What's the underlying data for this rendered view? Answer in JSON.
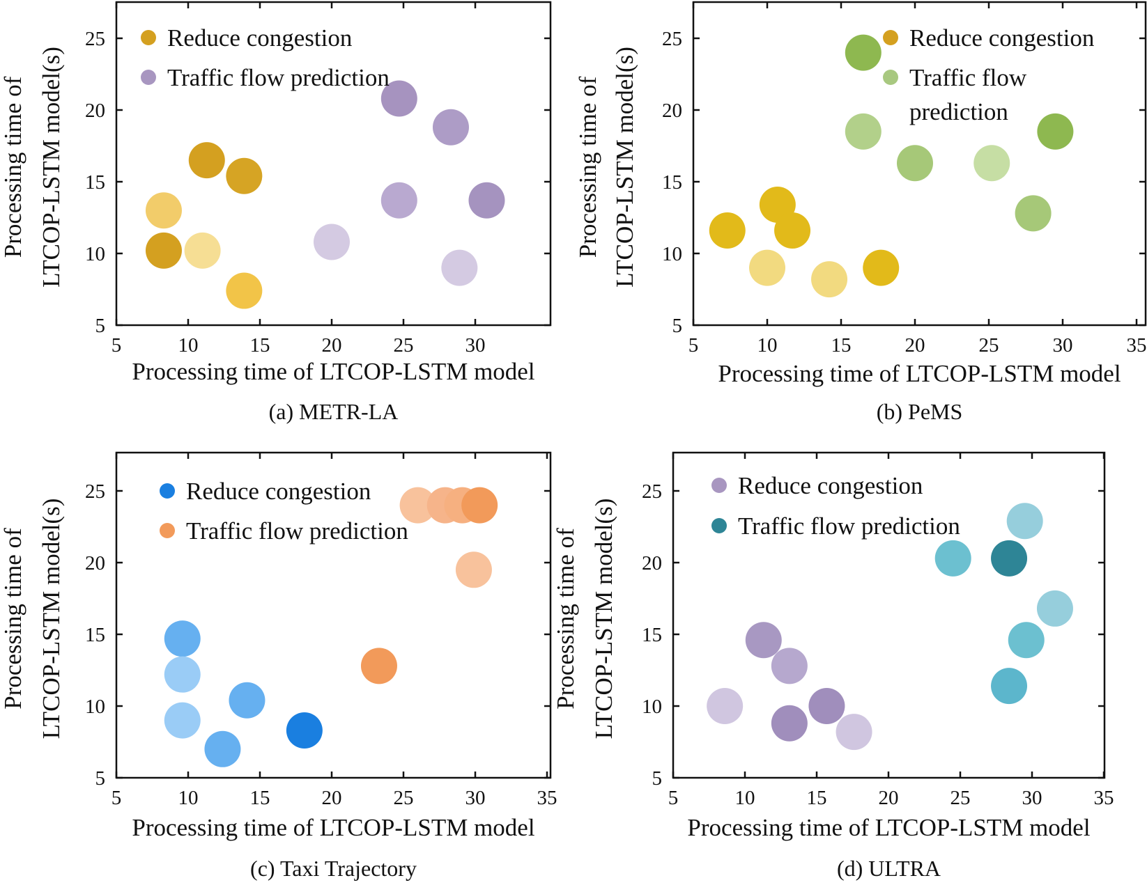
{
  "chart_data": [
    {
      "id": "a",
      "type": "scatter",
      "caption": "(a) METR-LA",
      "xlabel": "Processing time of LTCOP-LSTM model",
      "ylabel_lines": [
        "Processing time of",
        "LTCOP-LSTM model(s)"
      ],
      "xlim": [
        5,
        35
      ],
      "ylim": [
        5,
        27.5
      ],
      "xticks": [
        5,
        10,
        15,
        20,
        25,
        30
      ],
      "yticks": [
        5,
        10,
        15,
        20,
        25
      ],
      "legend_position": "top-left",
      "series": [
        {
          "name": "Reduce congestion",
          "color": "#D4A020",
          "points": [
            {
              "x": 11.3,
              "y": 16.5,
              "color": "#D4A020"
            },
            {
              "x": 13.9,
              "y": 15.4,
              "color": "#D6A424"
            },
            {
              "x": 8.3,
              "y": 13.0,
              "color": "#F2CC6A"
            },
            {
              "x": 8.3,
              "y": 10.2,
              "color": "#D4A020"
            },
            {
              "x": 11.0,
              "y": 10.2,
              "color": "#F6DE94"
            },
            {
              "x": 13.9,
              "y": 7.4,
              "color": "#F2C448"
            }
          ]
        },
        {
          "name": "Traffic flow prediction",
          "color": "#A896C0",
          "points": [
            {
              "x": 24.7,
              "y": 20.8,
              "color": "#A693BF"
            },
            {
              "x": 28.3,
              "y": 18.8,
              "color": "#AD9CC6"
            },
            {
              "x": 24.7,
              "y": 13.7,
              "color": "#B9A9D0"
            },
            {
              "x": 30.8,
              "y": 13.7,
              "color": "#A593BF"
            },
            {
              "x": 20.0,
              "y": 10.8,
              "color": "#D4CAE2"
            },
            {
              "x": 28.9,
              "y": 9.0,
              "color": "#D4CAE2"
            }
          ]
        }
      ]
    },
    {
      "id": "b",
      "type": "scatter",
      "caption": "(b) PeMS",
      "xlabel": "Processing time of LTCOP-LSTM model",
      "ylabel_lines": [
        "Processing time of",
        "LTCOP-LSTM model(s)"
      ],
      "xlim": [
        5,
        35
      ],
      "ylim": [
        5,
        27.5
      ],
      "xticks": [
        5,
        10,
        15,
        20,
        25,
        30,
        35
      ],
      "yticks": [
        5,
        10,
        15,
        20,
        25
      ],
      "legend_position": "top-right",
      "series": [
        {
          "name": "Reduce congestion",
          "color": "#D4A020",
          "points": [
            {
              "x": 7.3,
              "y": 11.6,
              "color": "#E2BA1A"
            },
            {
              "x": 10.7,
              "y": 13.4,
              "color": "#E2BA1A"
            },
            {
              "x": 11.7,
              "y": 11.6,
              "color": "#E2BA1A"
            },
            {
              "x": 17.7,
              "y": 9.0,
              "color": "#E2BA1A"
            },
            {
              "x": 10.0,
              "y": 9.0,
              "color": "#F2DA80"
            },
            {
              "x": 14.2,
              "y": 8.2,
              "color": "#F2DA80"
            }
          ]
        },
        {
          "name": "Traffic flow\nprediction",
          "color": "#A8C880",
          "points": [
            {
              "x": 16.5,
              "y": 24.0,
              "color": "#8EB850"
            },
            {
              "x": 16.5,
              "y": 18.5,
              "color": "#B2D08A"
            },
            {
              "x": 20.0,
              "y": 16.3,
              "color": "#A6C878"
            },
            {
              "x": 25.2,
              "y": 16.3,
              "color": "#C6DEA4"
            },
            {
              "x": 29.5,
              "y": 18.5,
              "color": "#8EB850"
            },
            {
              "x": 28.0,
              "y": 12.8,
              "color": "#A6C878"
            }
          ]
        }
      ]
    },
    {
      "id": "c",
      "type": "scatter",
      "caption": "(c) Taxi Trajectory",
      "xlabel": "Processing time of LTCOP-LSTM model",
      "ylabel_lines": [
        "Processing time of",
        "LTCOP-LSTM model(s)"
      ],
      "xlim": [
        5,
        35
      ],
      "ylim": [
        5,
        27.5
      ],
      "xticks": [
        5,
        10,
        15,
        20,
        25,
        30,
        35
      ],
      "yticks": [
        5,
        10,
        15,
        20,
        25
      ],
      "legend_position": "top-left",
      "series": [
        {
          "name": "Reduce congestion",
          "color": "#1A7FE0",
          "points": [
            {
              "x": 9.6,
              "y": 14.7,
              "color": "#66B0F0"
            },
            {
              "x": 9.6,
              "y": 12.2,
              "color": "#9ACCF6"
            },
            {
              "x": 9.6,
              "y": 9.0,
              "color": "#9ACCF6"
            },
            {
              "x": 12.4,
              "y": 7.0,
              "color": "#66B0F0"
            },
            {
              "x": 14.1,
              "y": 10.4,
              "color": "#66B0F0"
            },
            {
              "x": 18.1,
              "y": 8.3,
              "color": "#1A7FE0"
            }
          ]
        },
        {
          "name": "Traffic flow prediction",
          "color": "#F29A5A",
          "points": [
            {
              "x": 26.0,
              "y": 24.0,
              "color": "#F8C29C"
            },
            {
              "x": 27.9,
              "y": 24.0,
              "color": "#F6B48A"
            },
            {
              "x": 29.1,
              "y": 24.0,
              "color": "#F6B080"
            },
            {
              "x": 30.3,
              "y": 24.0,
              "color": "#F29A5A"
            },
            {
              "x": 29.9,
              "y": 19.5,
              "color": "#F8C29C"
            },
            {
              "x": 23.3,
              "y": 12.8,
              "color": "#F29A5A"
            }
          ]
        }
      ]
    },
    {
      "id": "d",
      "type": "scatter",
      "caption": "(d) ULTRA",
      "xlabel": "Processing time of LTCOP-LSTM model",
      "ylabel_lines": [
        "Processing time of",
        "LTCOP-LSTM model(s)"
      ],
      "xlim": [
        5,
        35
      ],
      "ylim": [
        5,
        27.5
      ],
      "xticks": [
        5,
        10,
        15,
        20,
        25,
        30,
        35
      ],
      "yticks": [
        5,
        10,
        15,
        20,
        25
      ],
      "legend_position": "top-left",
      "series": [
        {
          "name": "Reduce congestion",
          "color": "#A896C0",
          "points": [
            {
              "x": 11.3,
              "y": 14.6,
              "color": "#A898C2"
            },
            {
              "x": 13.1,
              "y": 12.8,
              "color": "#B6A8CE"
            },
            {
              "x": 15.7,
              "y": 10.0,
              "color": "#A08EBC"
            },
            {
              "x": 13.1,
              "y": 8.8,
              "color": "#A08EBC"
            },
            {
              "x": 8.6,
              "y": 10.0,
              "color": "#D0C6E0"
            },
            {
              "x": 17.6,
              "y": 8.2,
              "color": "#D0C6E0"
            }
          ]
        },
        {
          "name": "Traffic flow prediction",
          "color": "#2E8596",
          "points": [
            {
              "x": 24.5,
              "y": 20.3,
              "color": "#6CC0D0"
            },
            {
              "x": 28.4,
              "y": 20.3,
              "color": "#2E8596"
            },
            {
              "x": 29.5,
              "y": 22.9,
              "color": "#96CEDC"
            },
            {
              "x": 31.6,
              "y": 16.8,
              "color": "#96CEDC"
            },
            {
              "x": 29.6,
              "y": 14.6,
              "color": "#6CC0D0"
            },
            {
              "x": 28.4,
              "y": 11.4,
              "color": "#5CB6CC"
            }
          ]
        }
      ]
    }
  ]
}
